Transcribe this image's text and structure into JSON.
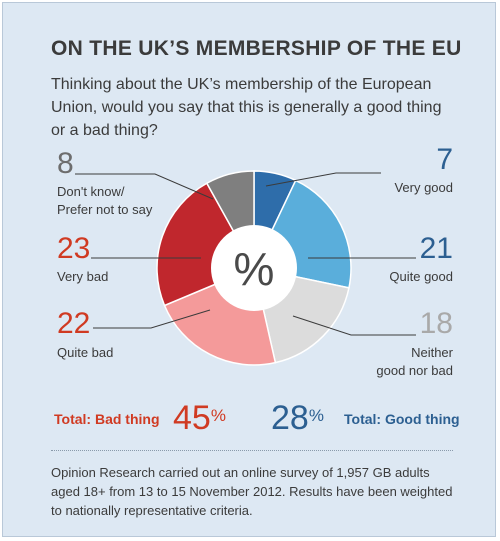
{
  "title": "ON THE UK’S MEMBERSHIP OF THE EU",
  "question": "Thinking about the UK’s membership of the European Union, would you say that this is generally a good thing or a bad thing?",
  "center_label": "%",
  "chart_data": {
    "type": "pie",
    "title": "ON THE UK’S MEMBERSHIP OF THE EU",
    "slices": [
      {
        "label": "Very good",
        "value": 7,
        "color": "#2e6daa"
      },
      {
        "label": "Quite good",
        "value": 21,
        "color": "#5aaedb"
      },
      {
        "label": "Neither good nor bad",
        "value": 18,
        "color": "#dcdcdc"
      },
      {
        "label": "Quite bad",
        "value": 22,
        "color": "#f49a9a"
      },
      {
        "label": "Very bad",
        "value": 23,
        "color": "#c0272d"
      },
      {
        "label": "Don't know/ Prefer not to say",
        "value": 8,
        "color": "#7f7f7f"
      }
    ],
    "unit": "%"
  },
  "labels": {
    "dont_know": {
      "value": "8",
      "line1": "Don't know/",
      "line2": "Prefer not to say"
    },
    "very_good": {
      "value": "7",
      "line1": "Very good"
    },
    "very_bad": {
      "value": "23",
      "line1": "Very bad"
    },
    "quite_good": {
      "value": "21",
      "line1": "Quite good"
    },
    "quite_bad": {
      "value": "22",
      "line1": "Quite bad"
    },
    "neither": {
      "value": "18",
      "line1": "Neither",
      "line2": "good nor bad"
    }
  },
  "totals": {
    "bad_label": "Total: Bad thing",
    "bad_value": "45",
    "good_value": "28",
    "good_label": "Total: Good thing",
    "percent_sign": "%"
  },
  "footnote": "Opinion Research carried out an online survey of 1,957 GB adults aged 18+ from 13 to 15 November 2012. Results have been weighted to nationally representative criteria.",
  "colors": {
    "background": "#dde8f3",
    "bad": "#d03a22",
    "good": "#2c5f91",
    "text": "#3b3b3b"
  }
}
